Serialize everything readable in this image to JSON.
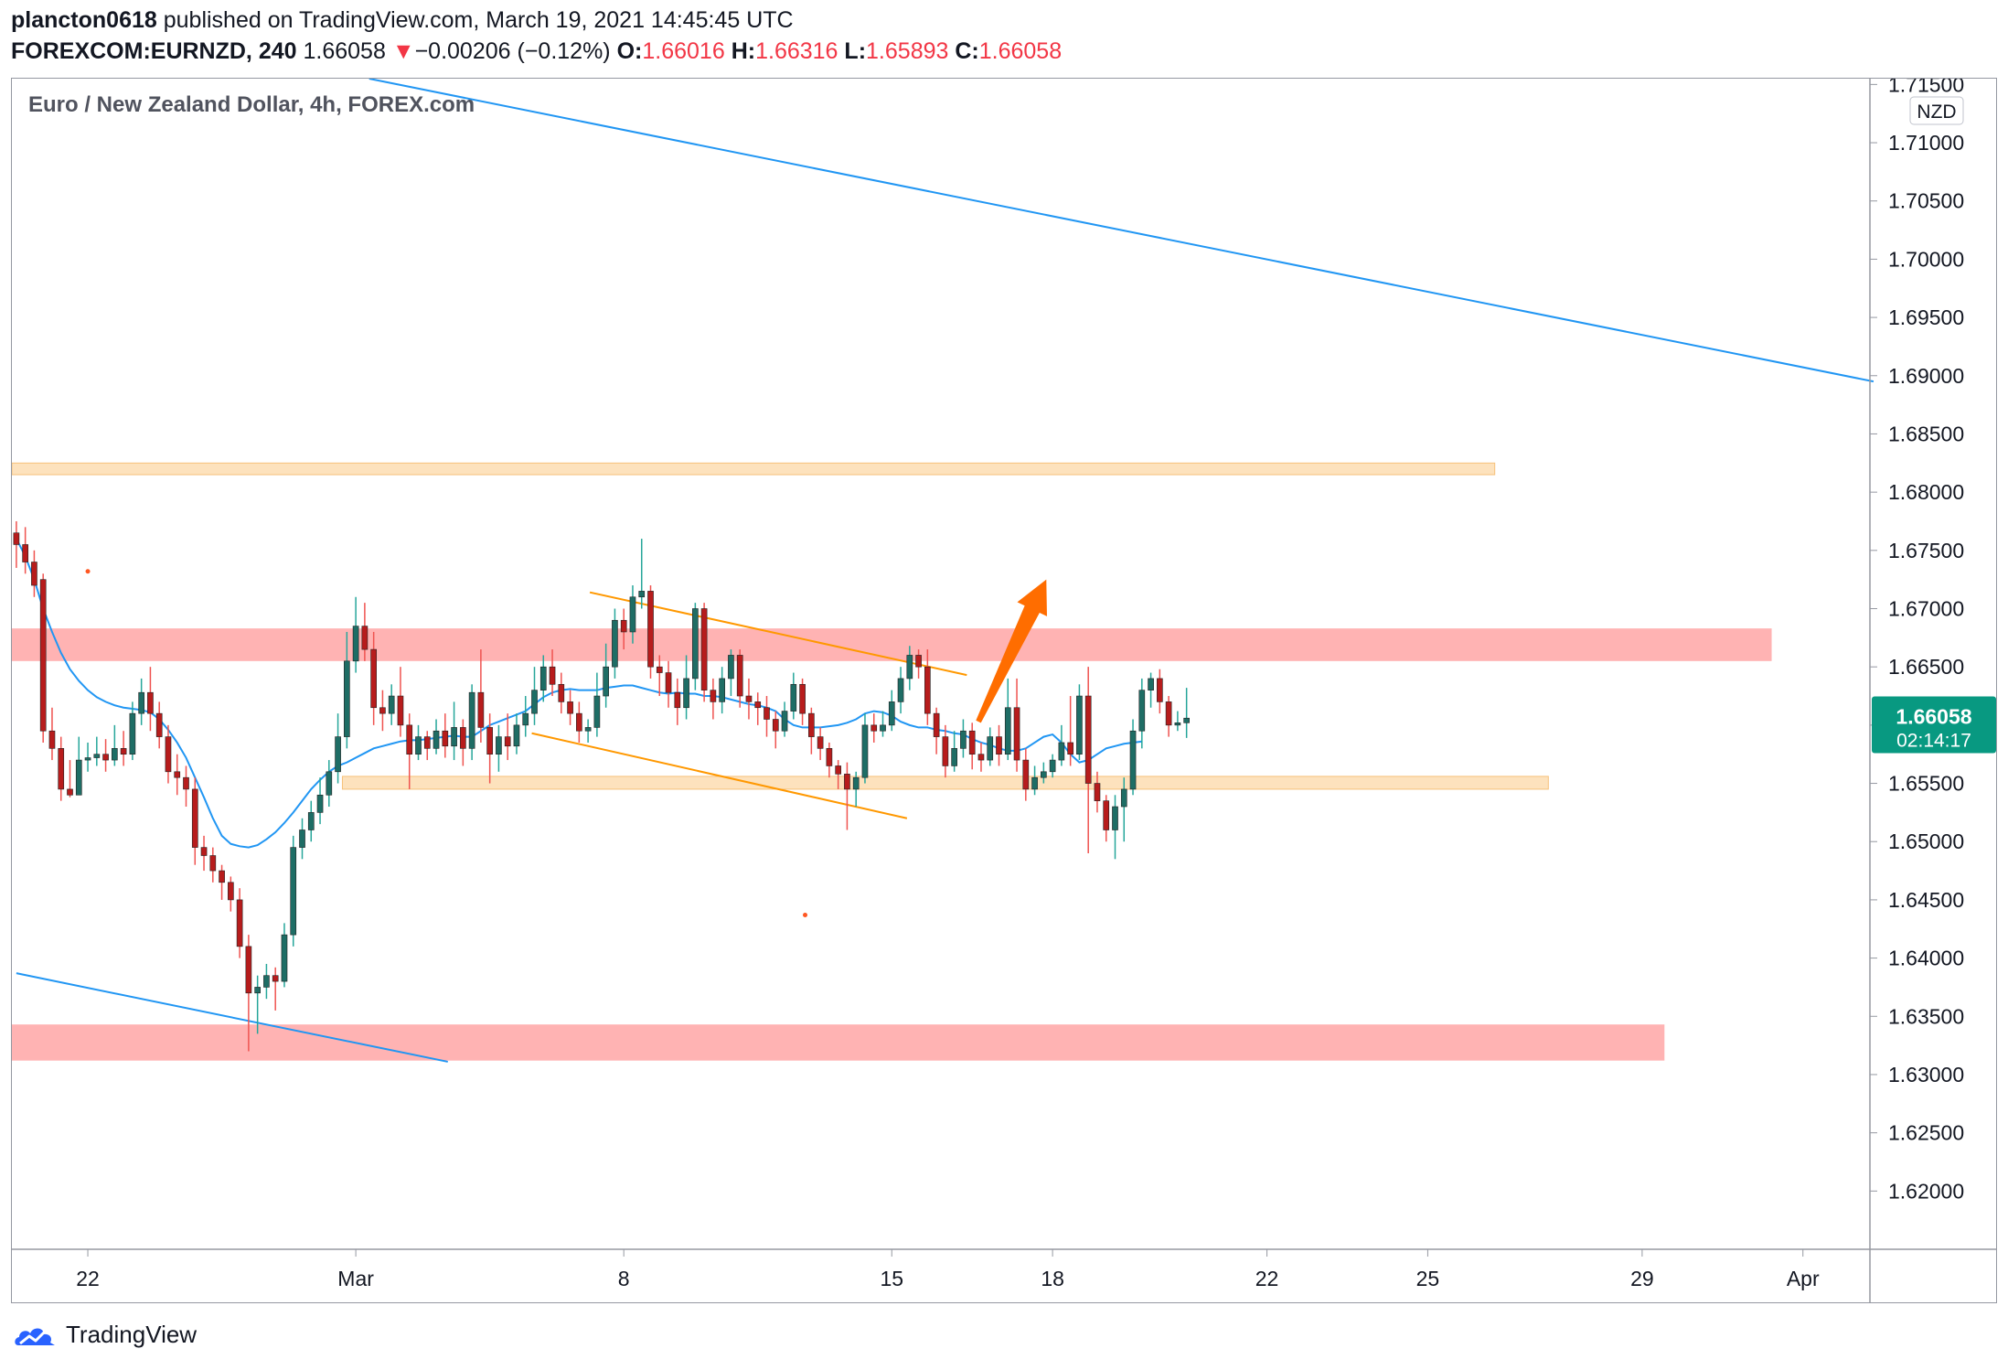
{
  "header": {
    "author": "plancton0618",
    "published": " published on TradingView.com, March 19, 2021 14:45:45 UTC",
    "symbol": "FOREXCOM:EURNZD, 240",
    "last": "1.66058",
    "arrow": "▼",
    "change": "−0.00206 (−0.12%)",
    "o_label": "O:",
    "o_value": "1.66016",
    "h_label": "H:",
    "h_value": "1.66316",
    "l_label": "L:",
    "l_value": "1.65893",
    "c_label": "C:",
    "c_value": "1.66058"
  },
  "footer": {
    "brand": "TradingView"
  },
  "colors": {
    "up": "#26a69a",
    "down": "#ef5350",
    "trend": "#2196f3",
    "channel": "#ff9800",
    "zone_red": "#ffb3b3",
    "zone_orange": "#fde2bd",
    "price_tag": "#089981"
  },
  "chart_data": {
    "type": "candlestick",
    "title": "Euro / New Zealand Dollar, 4h, FOREX.com",
    "currency_badge": "NZD",
    "ylim": [
      1.615,
      1.7155
    ],
    "y_ticks": [
      "1.71500",
      "1.71000",
      "1.70500",
      "1.70000",
      "1.69500",
      "1.69000",
      "1.68500",
      "1.68000",
      "1.67500",
      "1.67000",
      "1.66500",
      "1.66000",
      "1.65500",
      "1.65000",
      "1.64500",
      "1.64000",
      "1.63500",
      "1.63000",
      "1.62500",
      "1.62000"
    ],
    "x_ticks": [
      {
        "label": "22",
        "bar": 8
      },
      {
        "label": "Mar",
        "bar": 38
      },
      {
        "label": "8",
        "bar": 68
      },
      {
        "label": "15",
        "bar": 98
      },
      {
        "label": "18",
        "bar": 116
      },
      {
        "label": "22",
        "bar": 140
      },
      {
        "label": "25",
        "bar": 158
      },
      {
        "label": "29",
        "bar": 182
      },
      {
        "label": "Apr",
        "bar": 200
      }
    ],
    "bars_visible": 208,
    "last_price": "1.66058",
    "countdown": "02:14:17",
    "candles": [
      [
        1.6765,
        1.6755,
        1.6775,
        1.6735
      ],
      [
        1.6755,
        1.674,
        1.677,
        1.673
      ],
      [
        1.674,
        1.672,
        1.675,
        1.671
      ],
      [
        1.6725,
        1.6595,
        1.673,
        1.6585
      ],
      [
        1.6595,
        1.658,
        1.6615,
        1.657
      ],
      [
        1.658,
        1.6545,
        1.659,
        1.6535
      ],
      [
        1.6545,
        1.654,
        1.657,
        1.6538
      ],
      [
        1.654,
        1.657,
        1.659,
        1.654
      ],
      [
        1.657,
        1.6572,
        1.6585,
        1.656
      ],
      [
        1.6572,
        1.6575,
        1.659,
        1.6565
      ],
      [
        1.6575,
        1.657,
        1.6588,
        1.656
      ],
      [
        1.657,
        1.658,
        1.66,
        1.6565
      ],
      [
        1.658,
        1.6575,
        1.6595,
        1.6565
      ],
      [
        1.6575,
        1.661,
        1.662,
        1.657
      ],
      [
        1.661,
        1.6628,
        1.664,
        1.66
      ],
      [
        1.6628,
        1.661,
        1.665,
        1.6595
      ],
      [
        1.661,
        1.659,
        1.662,
        1.658
      ],
      [
        1.659,
        1.656,
        1.66,
        1.655
      ],
      [
        1.656,
        1.6555,
        1.6575,
        1.654
      ],
      [
        1.6555,
        1.6545,
        1.6565,
        1.653
      ],
      [
        1.6545,
        1.6495,
        1.6555,
        1.648
      ],
      [
        1.6495,
        1.6488,
        1.6505,
        1.6475
      ],
      [
        1.6488,
        1.6475,
        1.6495,
        1.6465
      ],
      [
        1.6475,
        1.6465,
        1.648,
        1.645
      ],
      [
        1.6465,
        1.645,
        1.647,
        1.644
      ],
      [
        1.645,
        1.641,
        1.646,
        1.64
      ],
      [
        1.641,
        1.637,
        1.642,
        1.632
      ],
      [
        1.637,
        1.6375,
        1.6385,
        1.6335
      ],
      [
        1.6375,
        1.6385,
        1.6395,
        1.6365
      ],
      [
        1.6385,
        1.638,
        1.6392,
        1.6355
      ],
      [
        1.638,
        1.642,
        1.643,
        1.6375
      ],
      [
        1.642,
        1.6495,
        1.6505,
        1.641
      ],
      [
        1.6495,
        1.651,
        1.652,
        1.6485
      ],
      [
        1.651,
        1.6525,
        1.6535,
        1.65
      ],
      [
        1.6525,
        1.654,
        1.6555,
        1.6515
      ],
      [
        1.654,
        1.656,
        1.657,
        1.653
      ],
      [
        1.656,
        1.659,
        1.661,
        1.655
      ],
      [
        1.659,
        1.6655,
        1.668,
        1.658
      ],
      [
        1.6655,
        1.6685,
        1.671,
        1.6645
      ],
      [
        1.6685,
        1.6665,
        1.6705,
        1.6655
      ],
      [
        1.6665,
        1.6615,
        1.668,
        1.66
      ],
      [
        1.6615,
        1.661,
        1.663,
        1.6595
      ],
      [
        1.661,
        1.6625,
        1.6635,
        1.66
      ],
      [
        1.6625,
        1.66,
        1.665,
        1.659
      ],
      [
        1.66,
        1.6575,
        1.661,
        1.6545
      ],
      [
        1.6575,
        1.659,
        1.66,
        1.657
      ],
      [
        1.659,
        1.658,
        1.6595,
        1.657
      ],
      [
        1.658,
        1.6595,
        1.6605,
        1.6575
      ],
      [
        1.6595,
        1.6582,
        1.661,
        1.6572
      ],
      [
        1.6582,
        1.6598,
        1.662,
        1.657
      ],
      [
        1.6598,
        1.658,
        1.6605,
        1.6565
      ],
      [
        1.658,
        1.6628,
        1.6635,
        1.657
      ],
      [
        1.6628,
        1.6598,
        1.6665,
        1.6585
      ],
      [
        1.6598,
        1.6575,
        1.661,
        1.655
      ],
      [
        1.6575,
        1.659,
        1.66,
        1.656
      ],
      [
        1.659,
        1.6582,
        1.661,
        1.657
      ],
      [
        1.6582,
        1.66,
        1.661,
        1.6575
      ],
      [
        1.66,
        1.661,
        1.6625,
        1.659
      ],
      [
        1.661,
        1.663,
        1.665,
        1.66
      ],
      [
        1.663,
        1.665,
        1.666,
        1.662
      ],
      [
        1.665,
        1.6635,
        1.6665,
        1.6625
      ],
      [
        1.6635,
        1.662,
        1.6645,
        1.661
      ],
      [
        1.662,
        1.661,
        1.663,
        1.66
      ],
      [
        1.661,
        1.6595,
        1.662,
        1.6585
      ],
      [
        1.6595,
        1.6598,
        1.6605,
        1.6585
      ],
      [
        1.6598,
        1.6625,
        1.6645,
        1.659
      ],
      [
        1.6625,
        1.665,
        1.667,
        1.6615
      ],
      [
        1.665,
        1.669,
        1.67,
        1.664
      ],
      [
        1.669,
        1.668,
        1.67,
        1.6665
      ],
      [
        1.668,
        1.671,
        1.672,
        1.667
      ],
      [
        1.671,
        1.6715,
        1.676,
        1.67
      ],
      [
        1.6715,
        1.665,
        1.672,
        1.664
      ],
      [
        1.665,
        1.6645,
        1.666,
        1.6625
      ],
      [
        1.6645,
        1.6628,
        1.6655,
        1.6615
      ],
      [
        1.6628,
        1.6615,
        1.664,
        1.66
      ],
      [
        1.6615,
        1.664,
        1.666,
        1.6605
      ],
      [
        1.664,
        1.67,
        1.6705,
        1.663
      ],
      [
        1.67,
        1.663,
        1.6705,
        1.662
      ],
      [
        1.663,
        1.662,
        1.664,
        1.6605
      ],
      [
        1.662,
        1.664,
        1.665,
        1.661
      ],
      [
        1.664,
        1.666,
        1.6665,
        1.6625
      ],
      [
        1.666,
        1.6625,
        1.6665,
        1.6615
      ],
      [
        1.6625,
        1.662,
        1.664,
        1.6605
      ],
      [
        1.662,
        1.6615,
        1.6628,
        1.66
      ],
      [
        1.6615,
        1.6605,
        1.6625,
        1.659
      ],
      [
        1.6605,
        1.6595,
        1.6612,
        1.658
      ],
      [
        1.6595,
        1.6612,
        1.662,
        1.659
      ],
      [
        1.6612,
        1.6635,
        1.6645,
        1.6605
      ],
      [
        1.6635,
        1.661,
        1.664,
        1.66
      ],
      [
        1.661,
        1.659,
        1.6615,
        1.6575
      ],
      [
        1.659,
        1.658,
        1.6598,
        1.657
      ],
      [
        1.658,
        1.6565,
        1.6585,
        1.6555
      ],
      [
        1.6565,
        1.6558,
        1.657,
        1.6545
      ],
      [
        1.6558,
        1.6545,
        1.6568,
        1.651
      ],
      [
        1.6545,
        1.6555,
        1.656,
        1.653
      ],
      [
        1.6555,
        1.66,
        1.661,
        1.655
      ],
      [
        1.66,
        1.6595,
        1.661,
        1.6585
      ],
      [
        1.6595,
        1.66,
        1.6612,
        1.659
      ],
      [
        1.66,
        1.662,
        1.663,
        1.6595
      ],
      [
        1.662,
        1.664,
        1.665,
        1.661
      ],
      [
        1.664,
        1.666,
        1.6668,
        1.663
      ],
      [
        1.666,
        1.665,
        1.6665,
        1.664
      ],
      [
        1.665,
        1.661,
        1.6665,
        1.66
      ],
      [
        1.661,
        1.659,
        1.6615,
        1.6575
      ],
      [
        1.659,
        1.6565,
        1.66,
        1.6555
      ],
      [
        1.6565,
        1.658,
        1.6595,
        1.656
      ],
      [
        1.658,
        1.6595,
        1.6605,
        1.6572
      ],
      [
        1.6595,
        1.6575,
        1.6602,
        1.6562
      ],
      [
        1.6575,
        1.657,
        1.6585,
        1.656
      ],
      [
        1.657,
        1.659,
        1.6598,
        1.6565
      ],
      [
        1.659,
        1.6575,
        1.66,
        1.6565
      ],
      [
        1.6575,
        1.6615,
        1.664,
        1.657
      ],
      [
        1.6615,
        1.657,
        1.664,
        1.656
      ],
      [
        1.657,
        1.6545,
        1.658,
        1.6535
      ],
      [
        1.6545,
        1.6555,
        1.6565,
        1.654
      ],
      [
        1.6555,
        1.656,
        1.6568,
        1.655
      ],
      [
        1.656,
        1.657,
        1.6575,
        1.6555
      ],
      [
        1.657,
        1.6585,
        1.66,
        1.6565
      ],
      [
        1.6585,
        1.6575,
        1.6625,
        1.6565
      ],
      [
        1.6575,
        1.6625,
        1.6635,
        1.657
      ],
      [
        1.6625,
        1.655,
        1.665,
        1.649
      ],
      [
        1.655,
        1.6535,
        1.656,
        1.6525
      ],
      [
        1.6535,
        1.651,
        1.654,
        1.65
      ],
      [
        1.651,
        1.653,
        1.654,
        1.6485
      ],
      [
        1.653,
        1.6545,
        1.6555,
        1.65
      ],
      [
        1.6545,
        1.6595,
        1.6605,
        1.654
      ],
      [
        1.6595,
        1.663,
        1.664,
        1.658
      ],
      [
        1.663,
        1.664,
        1.6645,
        1.6615
      ],
      [
        1.664,
        1.662,
        1.6648,
        1.661
      ],
      [
        1.662,
        1.66,
        1.6625,
        1.659
      ],
      [
        1.66,
        1.6602,
        1.6612,
        1.6595
      ],
      [
        1.6602,
        1.6606,
        1.6632,
        1.6589
      ]
    ],
    "ema": [
      1.676,
      1.6745,
      1.6725,
      1.67,
      1.668,
      1.6662,
      1.6648,
      1.6638,
      1.663,
      1.6624,
      1.662,
      1.6617,
      1.6615,
      1.6614,
      1.6613,
      1.6611,
      1.6605,
      1.6596,
      1.6585,
      1.6572,
      1.6555,
      1.6538,
      1.652,
      1.6505,
      1.6498,
      1.6496,
      1.6495,
      1.6497,
      1.6502,
      1.6508,
      1.6516,
      1.6525,
      1.6535,
      1.6545,
      1.6553,
      1.656,
      1.6565,
      1.6568,
      1.6572,
      1.6576,
      1.658,
      1.6582,
      1.6584,
      1.6586,
      1.6587,
      1.6587,
      1.6588,
      1.6589,
      1.659,
      1.6591,
      1.659,
      1.659,
      1.6595,
      1.66,
      1.6603,
      1.6606,
      1.6609,
      1.6612,
      1.6618,
      1.6624,
      1.6628,
      1.663,
      1.6631,
      1.663,
      1.663,
      1.663,
      1.6632,
      1.6633,
      1.6634,
      1.6634,
      1.6632,
      1.663,
      1.6628,
      1.6627,
      1.6628,
      1.6627,
      1.6627,
      1.6625,
      1.6625,
      1.6624,
      1.6622,
      1.662,
      1.6618,
      1.6617,
      1.6615,
      1.6612,
      1.6605,
      1.66,
      1.6598,
      1.6598,
      1.6598,
      1.6599,
      1.66,
      1.6602,
      1.6605,
      1.661,
      1.6612,
      1.6611,
      1.6608,
      1.6603,
      1.66,
      1.6598,
      1.6598,
      1.6596,
      1.6595,
      1.6593,
      1.6592,
      1.6588,
      1.6585,
      1.6583,
      1.658,
      1.6578,
      1.6578,
      1.658,
      1.6585,
      1.659,
      1.6592,
      1.6585,
      1.6575,
      1.6568,
      1.657,
      1.6575,
      1.658,
      1.6582,
      1.6584,
      1.6585,
      1.6586
    ],
    "zones": [
      {
        "from": 1.6655,
        "to": 1.6683,
        "start_bar": 0,
        "end_bar": 197,
        "kind": "red"
      },
      {
        "from": 1.6312,
        "to": 1.6343,
        "start_bar": 0,
        "end_bar": 185,
        "kind": "red"
      },
      {
        "from": 1.6815,
        "to": 1.6825,
        "start_bar": 0,
        "end_bar": 166,
        "kind": "orange"
      },
      {
        "from": 1.6545,
        "to": 1.6556,
        "start_bar": 37,
        "end_bar": 172,
        "kind": "orange"
      }
    ],
    "trendlines": [
      {
        "p1": [
          39.5,
          1.7155
        ],
        "p2": [
          207.9,
          1.6895
        ],
        "kind": "trend"
      },
      {
        "p1": [
          0,
          1.6387
        ],
        "p2": [
          48.3,
          1.6311
        ],
        "kind": "trend"
      },
      {
        "p1": [
          64.2,
          1.6714
        ],
        "p2": [
          106.4,
          1.6643
        ],
        "kind": "channel"
      },
      {
        "p1": [
          57.7,
          1.6593
        ],
        "p2": [
          99.7,
          1.652
        ],
        "kind": "channel"
      }
    ],
    "arrow": {
      "from": [
        107.7,
        1.6603
      ],
      "to": [
        115.3,
        1.6725
      ]
    },
    "dots": [
      [
        8.0,
        1.6732
      ],
      [
        88.3,
        1.6437
      ]
    ]
  }
}
